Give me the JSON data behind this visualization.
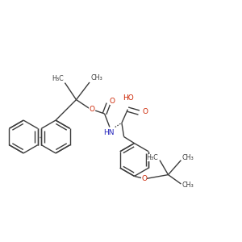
{
  "bg_color": "#ffffff",
  "bond_color": "#3c3c3c",
  "bond_lw": 1.0,
  "text_color_red": "#cc2200",
  "text_color_blue": "#2222bb",
  "font_size": 6.5,
  "font_size_sub": 5.8,
  "ring_r": 0.068,
  "figsize": [
    3.0,
    3.0
  ],
  "dpi": 100,
  "xlim": [
    0,
    1
  ],
  "ylim": [
    0,
    1
  ]
}
